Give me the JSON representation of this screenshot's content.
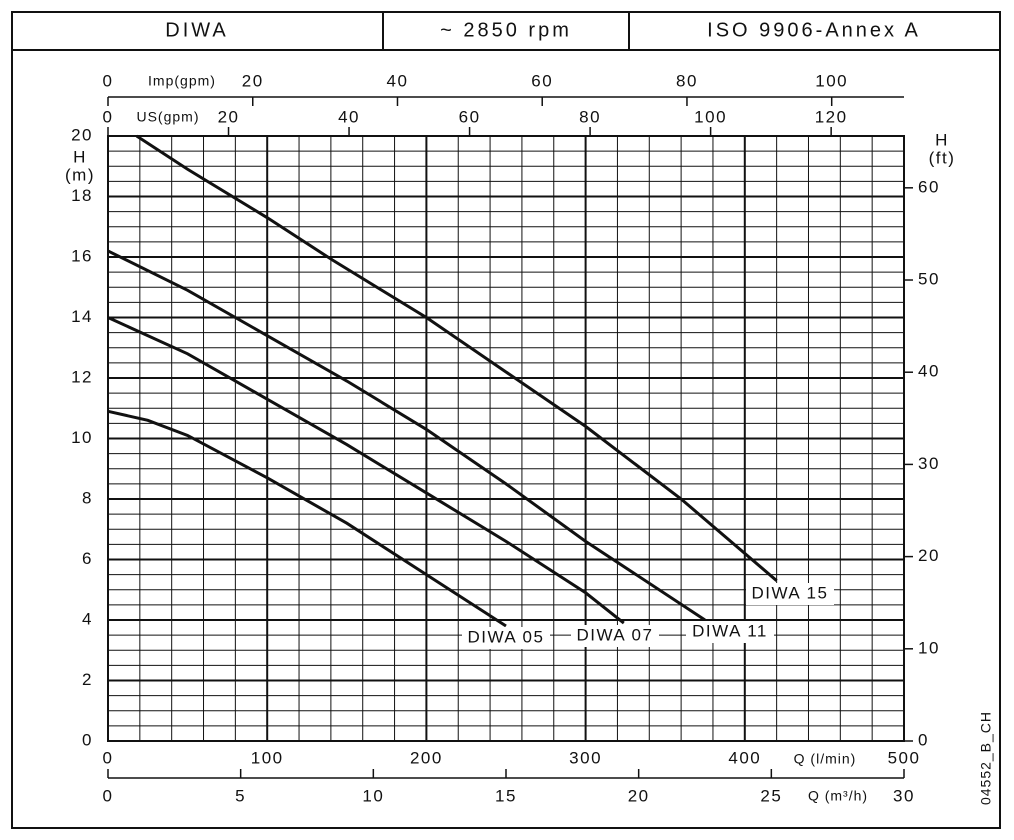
{
  "header": {
    "cells": [
      "DIWA",
      "~ 2850 rpm",
      "ISO 9906-Annex A"
    ]
  },
  "code": "04552_B_CH",
  "chart_data": {
    "type": "line",
    "xlabel": "Q (l/min)",
    "ylabel": [
      "H",
      "(m)"
    ],
    "y2label": [
      "H",
      "(ft)"
    ],
    "xlim": [
      0,
      500
    ],
    "xticks": [
      0,
      100,
      200,
      300,
      400,
      500
    ],
    "ylim": [
      0,
      20
    ],
    "yticks": [
      0,
      2,
      4,
      6,
      8,
      10,
      12,
      14,
      16,
      18,
      20
    ],
    "y2lim": [
      0,
      65.62
    ],
    "y2ticks": [
      0,
      10,
      20,
      30,
      40,
      50,
      60
    ],
    "imp_axis": {
      "label": "Imp(gpm)",
      "lim": [
        0,
        109.99
      ],
      "ticks": [
        0,
        20,
        40,
        60,
        80,
        100
      ]
    },
    "us_axis": {
      "label": "US(gpm)",
      "lim": [
        0,
        132.09
      ],
      "ticks": [
        0,
        20,
        40,
        60,
        80,
        100,
        120
      ]
    },
    "m3h_axis": {
      "label": "Q (m³/h)",
      "lim": [
        0,
        30
      ],
      "ticks": [
        0,
        5,
        10,
        15,
        20,
        25,
        30
      ]
    },
    "grid": true,
    "series": [
      {
        "name": "DIWA 05",
        "color": "#111111",
        "x": [
          0,
          25,
          50,
          100,
          150,
          200,
          250
        ],
        "values": [
          10.9,
          10.6,
          10.1,
          8.7,
          7.2,
          5.5,
          3.8
        ]
      },
      {
        "name": "DIWA 07",
        "color": "#111111",
        "x": [
          0,
          50,
          100,
          150,
          200,
          250,
          300,
          324
        ],
        "values": [
          14.0,
          12.8,
          11.3,
          9.8,
          8.2,
          6.6,
          4.9,
          3.9
        ]
      },
      {
        "name": "DIWA 11",
        "color": "#111111",
        "x": [
          0,
          50,
          100,
          150,
          200,
          250,
          300,
          375
        ],
        "values": [
          16.2,
          14.9,
          13.4,
          11.9,
          10.3,
          8.5,
          6.6,
          4.0
        ]
      },
      {
        "name": "DIWA 15",
        "color": "#111111",
        "x": [
          18,
          50,
          100,
          141,
          200,
          250,
          300,
          360,
          420
        ],
        "values": [
          20.0,
          18.9,
          17.3,
          15.9,
          14.0,
          12.2,
          10.4,
          8.0,
          5.3
        ]
      }
    ]
  }
}
